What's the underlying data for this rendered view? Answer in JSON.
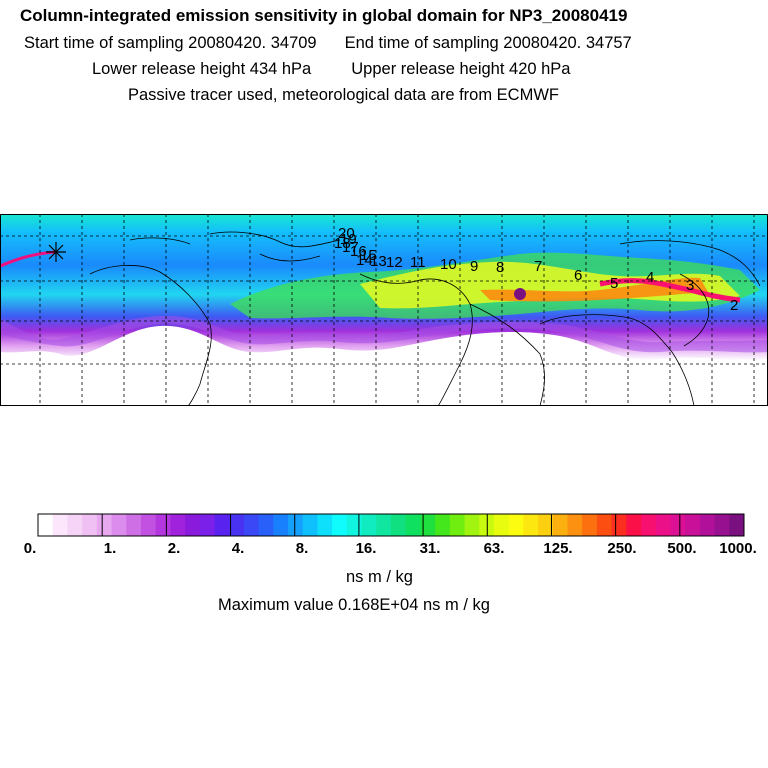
{
  "header": {
    "title": "Column-integrated emission sensitivity in global domain for NP3_20080419",
    "start_label": "Start time of sampling 20080420. 34709",
    "end_label": "End time of sampling 20080420. 34757",
    "lower_label": "Lower release height  434 hPa",
    "upper_label": "Upper release height  420 hPa",
    "tracer_label": "Passive tracer used, meteorological data are from ECMWF"
  },
  "map": {
    "marker": "release-star-icon",
    "day_labels": [
      "20",
      "19",
      "18",
      "17",
      "16",
      "15",
      "14",
      "13",
      "12",
      "11",
      "10",
      "9",
      "8",
      "7",
      "6",
      "5",
      "4",
      "3",
      "2"
    ]
  },
  "colorbar": {
    "tick_labels": [
      "0.",
      "1.",
      "2.",
      "4.",
      "8.",
      "16.",
      "31.",
      "63.",
      "125.",
      "250.",
      "500.",
      "1000."
    ],
    "colors": [
      "#ffffff",
      "#fbe6fb",
      "#f6d4f7",
      "#f0bff3",
      "#e8a8f0",
      "#dc8cec",
      "#cf6fe6",
      "#c251e2",
      "#b436de",
      "#a022dc",
      "#8a1bdc",
      "#7a20e8",
      "#5a22ee",
      "#4a32f2",
      "#3a48f6",
      "#2a60fa",
      "#1880fc",
      "#14a0fc",
      "#10c0fc",
      "#0ee0fc",
      "#10fcfc",
      "#10f4e0",
      "#10ecc0",
      "#10e6a0",
      "#10e080",
      "#10e060",
      "#20e040",
      "#44e61c",
      "#70ee10",
      "#a0f410",
      "#c8fa10",
      "#e8fc10",
      "#fcfc10",
      "#fce810",
      "#fcd010",
      "#fcb010",
      "#fc9010",
      "#fc7010",
      "#fc4e10",
      "#fc2e20",
      "#fc1048",
      "#f81070",
      "#ec1088",
      "#dc1094",
      "#c81098",
      "#b0109a",
      "#961090",
      "#7a1080"
    ]
  },
  "unit_label": "ns m / kg",
  "max_label": "Maximum value  0.168E+04 ns m / kg"
}
